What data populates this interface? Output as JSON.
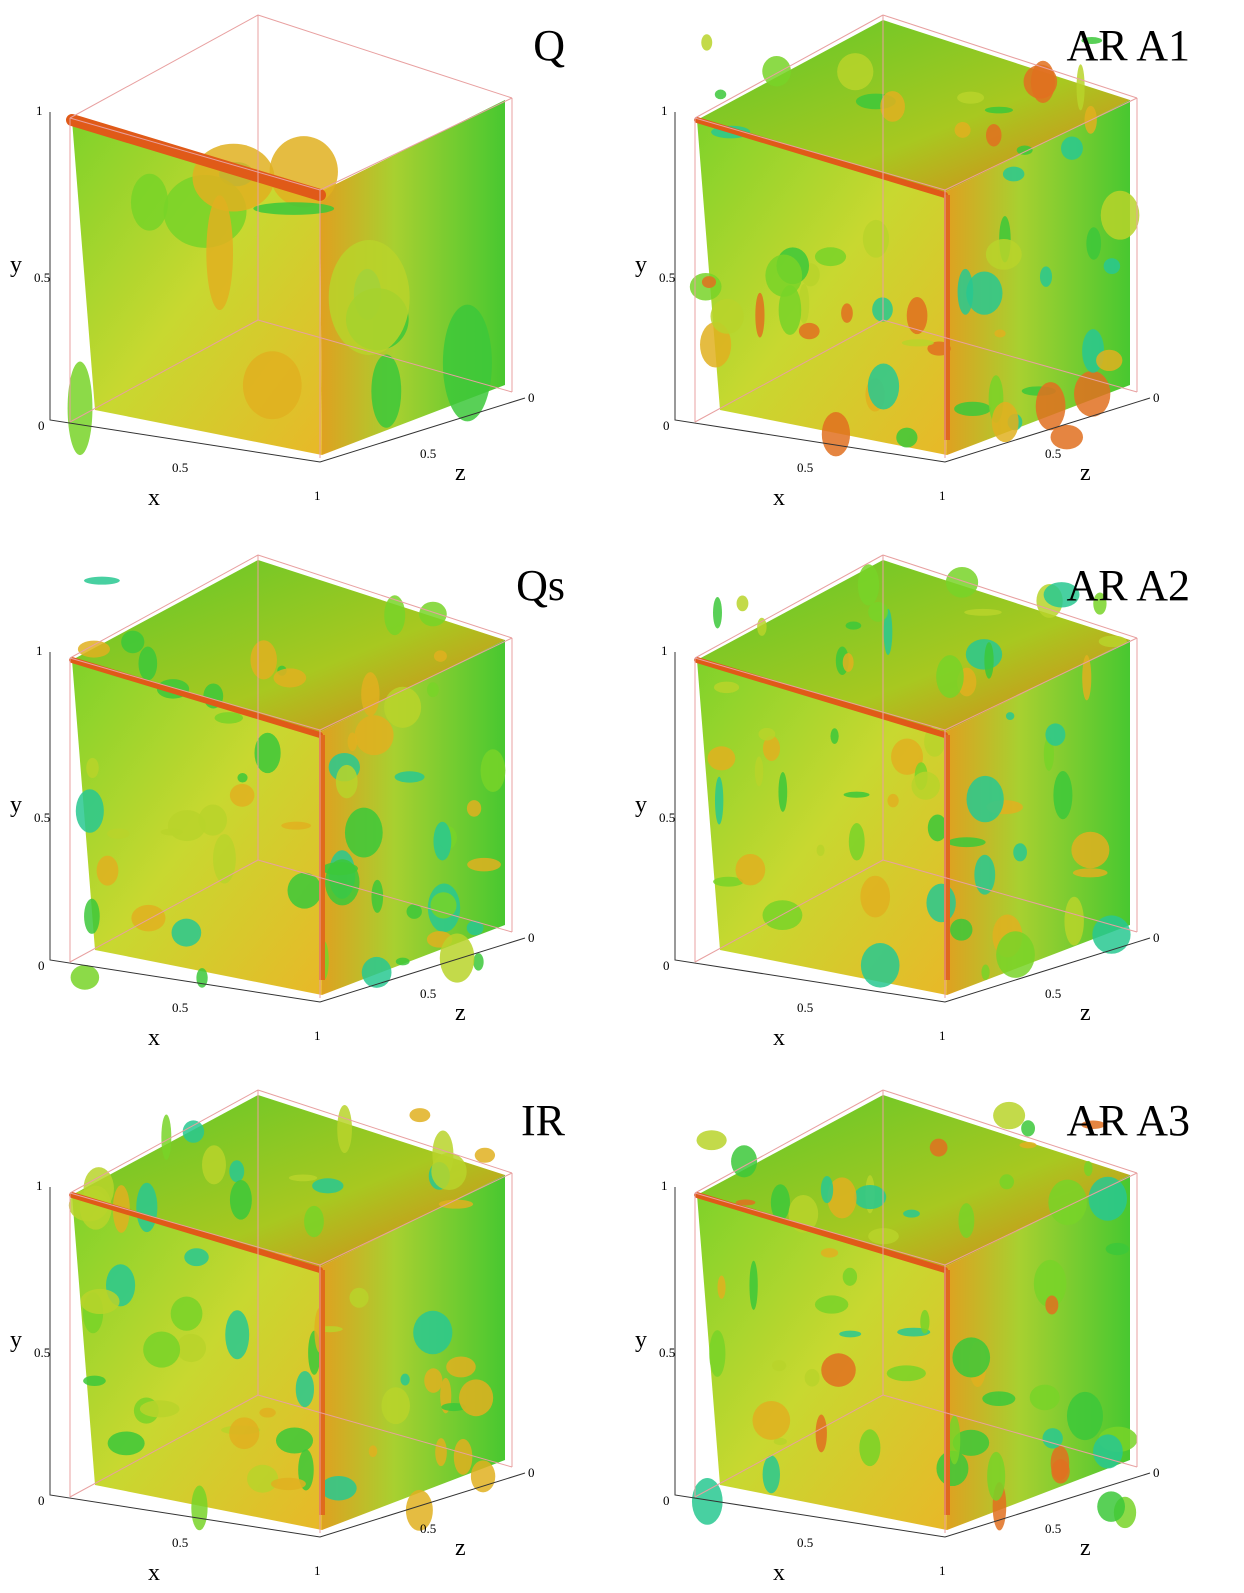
{
  "panels": [
    {
      "title": "Q",
      "x_label": "x",
      "y_label": "y",
      "z_label": "z",
      "y_ticks": [
        "1",
        "0.5",
        "0"
      ],
      "x_ticks": [
        "0.5",
        "1"
      ],
      "z_ticks": [
        "0",
        "0.5"
      ]
    },
    {
      "title": "AR A1",
      "x_label": "x",
      "y_label": "y",
      "z_label": "z",
      "y_ticks": [
        "1",
        "0.5",
        "0"
      ],
      "x_ticks": [
        "0.5",
        "1"
      ],
      "z_ticks": [
        "0",
        "0.5"
      ]
    },
    {
      "title": "Qs",
      "x_label": "x",
      "y_label": "y",
      "z_label": "z",
      "y_ticks": [
        "1",
        "0.5",
        "0"
      ],
      "x_ticks": [
        "0.5",
        "1"
      ],
      "z_ticks": [
        "0",
        "0.5"
      ]
    },
    {
      "title": "AR A2",
      "x_label": "x",
      "y_label": "y",
      "z_label": "z",
      "y_ticks": [
        "1",
        "0.5",
        "0"
      ],
      "x_ticks": [
        "0.5",
        "1"
      ],
      "z_ticks": [
        "0",
        "0.5"
      ]
    },
    {
      "title": "IR",
      "x_label": "x",
      "y_label": "y",
      "z_label": "z",
      "y_ticks": [
        "1",
        "0.5",
        "0"
      ],
      "x_ticks": [
        "0.5",
        "1"
      ],
      "z_ticks": [
        "0",
        "0.5"
      ]
    },
    {
      "title": "AR A3",
      "x_label": "x",
      "y_label": "y",
      "z_label": "z",
      "y_ticks": [
        "1",
        "0.5",
        "0"
      ],
      "x_ticks": [
        "0.5",
        "1"
      ],
      "z_ticks": [
        "0",
        "0.5"
      ]
    }
  ]
}
